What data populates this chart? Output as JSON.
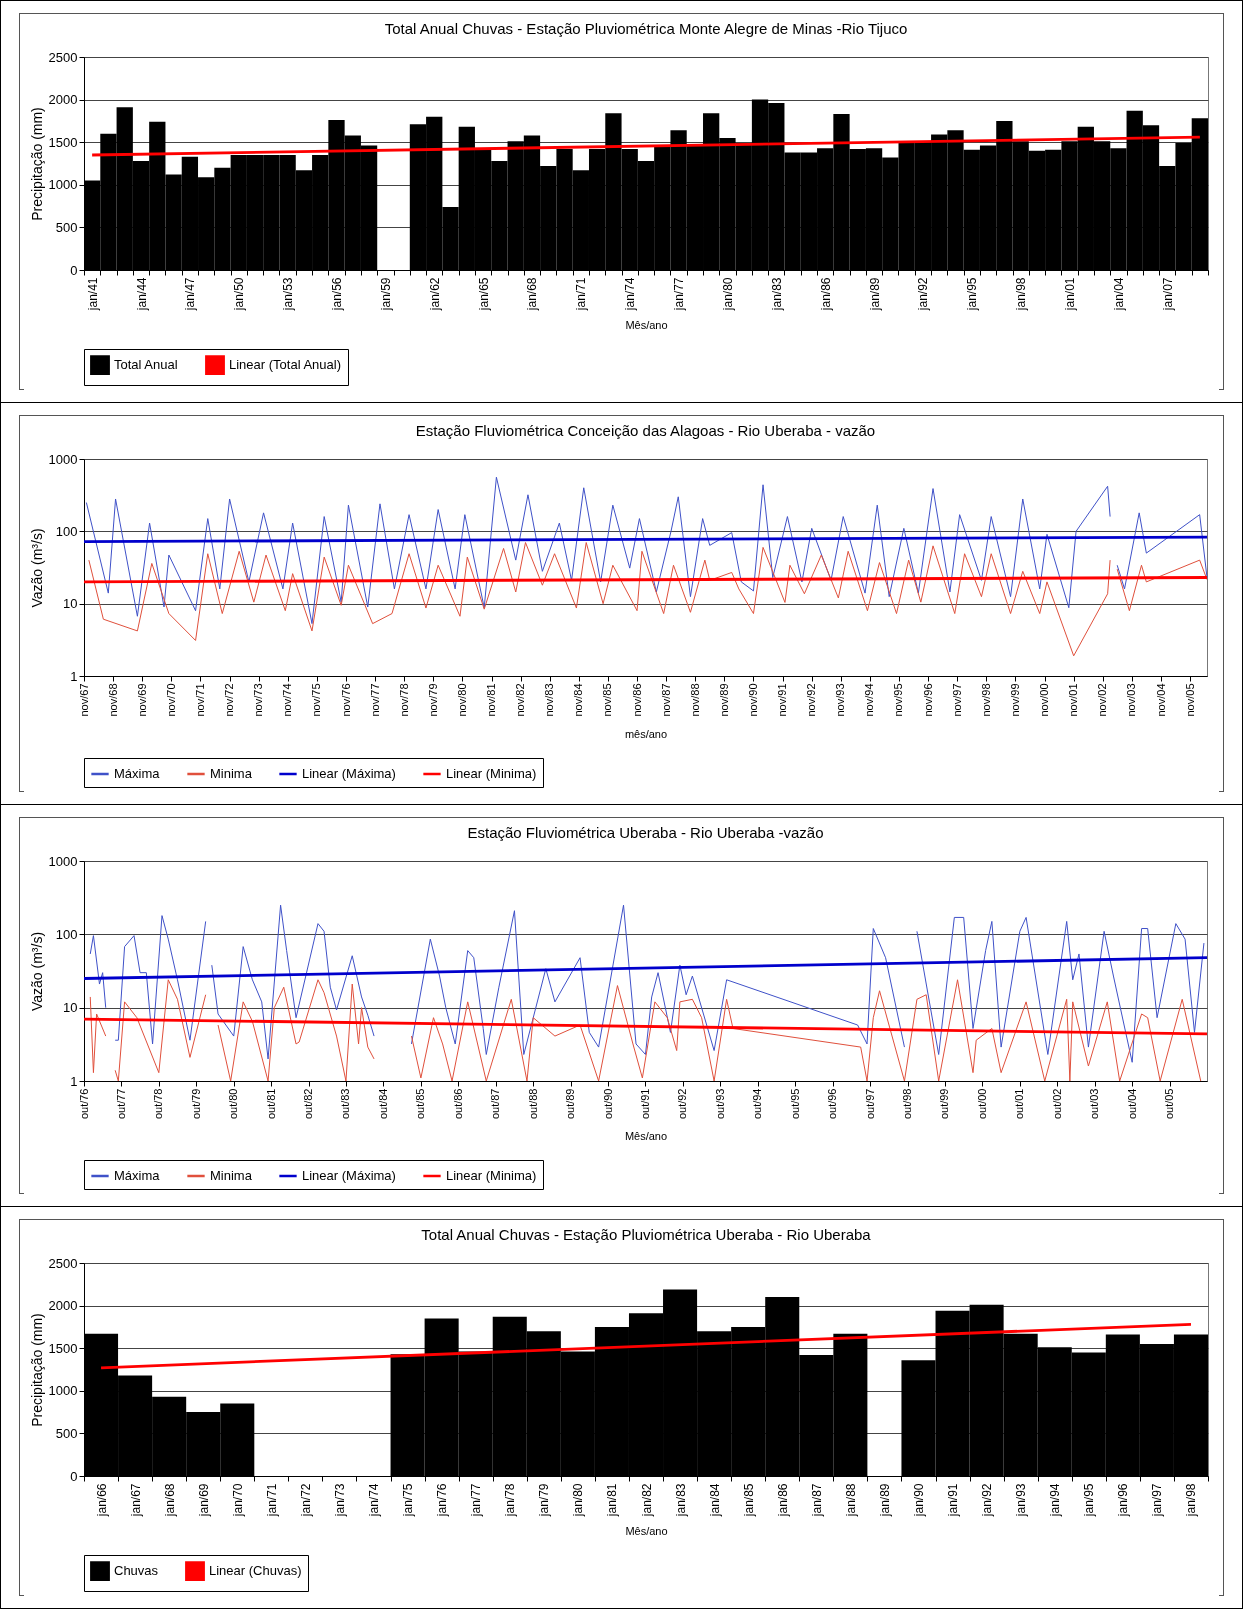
{
  "chart_data": [
    {
      "type": "bar",
      "title": "Total Anual Chuvas - Estação Pluviométrica Monte Alegre de Minas -Rio Tijuco",
      "xlabel": "Mês/ano",
      "ylabel": "Precipitação (mm)",
      "categories": [
        "jan/41",
        null,
        null,
        "jan/44",
        null,
        null,
        "jan/47",
        null,
        null,
        "jan/50",
        null,
        null,
        "jan/53",
        null,
        null,
        "jan/56",
        null,
        null,
        "jan/59",
        null,
        null,
        "jan/62",
        null,
        null,
        "jan/65",
        null,
        null,
        "jan/68",
        null,
        null,
        "jan/71",
        null,
        null,
        "jan/74",
        null,
        null,
        "jan/77",
        null,
        null,
        "jan/80",
        null,
        null,
        "jan/83",
        null,
        null,
        "jan/86",
        null,
        null,
        "jan/89",
        null,
        null,
        "jan/92",
        null,
        null,
        "jan/95",
        null,
        null,
        "jan/98",
        null,
        null,
        "jan/01",
        null,
        null,
        "jan/04",
        null,
        null,
        "jan/07",
        null,
        null
      ],
      "series": [
        {
          "name": "Total Anual",
          "type": "bar",
          "color": "#000000",
          "values": [
            1050,
            1600,
            1910,
            1280,
            1740,
            1120,
            1330,
            1090,
            1200,
            1350,
            1350,
            1350,
            1350,
            1170,
            1350,
            1760,
            1580,
            1460,
            null,
            null,
            1710,
            1800,
            740,
            1680,
            1420,
            1280,
            1510,
            1580,
            1220,
            1420,
            1170,
            1420,
            1840,
            1420,
            1280,
            1460,
            1640,
            1460,
            1840,
            1550,
            1490,
            2000,
            1960,
            1380,
            1380,
            1430,
            1830,
            1420,
            1430,
            1320,
            1510,
            1510,
            1590,
            1640,
            1410,
            1460,
            1750,
            1510,
            1400,
            1410,
            1510,
            1680,
            1510,
            1430,
            1870,
            1700,
            1220,
            1490,
            1780
          ]
        },
        {
          "name": "Linear (Total Anual)",
          "type": "line",
          "color": "#ff0000",
          "values": [
            1350,
            null,
            null,
            null,
            null,
            null,
            null,
            null,
            null,
            null,
            null,
            null,
            null,
            null,
            null,
            null,
            null,
            null,
            null,
            null,
            null,
            null,
            null,
            null,
            null,
            null,
            null,
            null,
            null,
            null,
            null,
            null,
            null,
            null,
            null,
            null,
            null,
            null,
            null,
            null,
            null,
            null,
            null,
            null,
            null,
            null,
            null,
            null,
            null,
            null,
            null,
            null,
            null,
            null,
            null,
            null,
            null,
            null,
            null,
            null,
            null,
            null,
            null,
            null,
            null,
            null,
            null,
            null,
            1560
          ]
        }
      ],
      "ylim": [
        0,
        2500
      ],
      "yticks": [
        0,
        500,
        1000,
        1500,
        2000,
        2500
      ],
      "grid": "y",
      "legend": "bottom"
    },
    {
      "type": "line",
      "title": "Estação Fluviométrica Conceição das Alagoas - Rio Uberaba - vazão",
      "xlabel": "mês/ano",
      "ylabel": "Vazão (m³/s)",
      "series": [
        {
          "name": "Máxima",
          "color": "#3f51c8",
          "x": [
            "1967-12",
            "1968-09",
            "1968-12",
            "1969-09",
            "1970-02",
            "1970-08",
            "1970-10",
            "1971-09",
            "1972-02",
            "1972-07",
            "1972-11",
            "1973-07",
            "1974-01",
            "1974-09",
            "1975-01",
            "1975-09",
            "1976-02",
            "1976-09",
            "1976-12",
            "1977-08",
            "1978-01",
            "1978-07",
            "1979-01",
            "1979-08",
            "1980-01",
            "1980-08",
            "1980-12",
            "1981-08",
            "1982-01",
            "1982-09",
            "1983-02",
            "1983-08",
            "1984-03",
            "1984-08",
            "1985-01",
            "1985-08",
            "1986-01",
            "1986-08",
            "1986-12",
            "1987-07",
            "1988-01",
            "1988-04",
            "1988-09",
            "1989-02",
            "1989-05",
            "1990-02",
            "1990-06",
            "1990-11",
            "1991-03",
            "1991-07",
            "1992-01",
            "1992-07",
            "1992-11",
            "1993-07",
            "1993-12",
            "1994-09",
            "1995-02",
            "1995-07",
            "1996-01",
            "1996-07",
            "1997-01",
            "1997-08",
            "1997-12",
            "1998-09",
            "1999-01",
            "1999-09",
            "2000-02",
            "2000-09",
            "2000-12",
            "2001-09",
            "2001-12",
            "2003-01",
            "2003-02",
            "2003-04",
            "2003-05",
            "2003-08",
            "2004-02",
            "2004-05",
            "2006-03",
            "2006-06"
          ],
          "values": [
            250,
            14,
            280,
            6.7,
            130,
            9,
            47,
            8,
            150,
            16,
            280,
            20,
            180,
            16,
            130,
            5.3,
            160,
            10.5,
            230,
            9,
            240,
            16,
            170,
            16,
            200,
            16,
            170,
            8.8,
            560,
            40,
            320,
            28,
            130,
            21,
            400,
            20,
            230,
            31,
            150,
            14.5,
            100,
            300,
            12.5,
            150,
            64,
            96,
            20,
            15,
            440,
            23,
            160,
            20,
            110,
            21,
            160,
            14,
            230,
            12.5,
            110,
            14,
            390,
            14.5,
            170,
            21,
            160,
            12.5,
            280,
            16,
            91,
            8.8,
            100,
            420,
            160,
            null,
            34,
            16,
            180,
            50,
            170,
            23
          ]
        },
        {
          "name": "Minima",
          "color": "#e0503c",
          "x": [
            "1968-01",
            "1968-07",
            "1969-09",
            "1970-03",
            "1970-10",
            "1971-09",
            "1972-02",
            "1972-08",
            "1973-03",
            "1973-09",
            "1974-02",
            "1974-10",
            "1975-01",
            "1975-09",
            "1976-02",
            "1976-09",
            "1976-12",
            "1977-10",
            "1978-06",
            "1979-01",
            "1979-08",
            "1980-01",
            "1980-10",
            "1981-01",
            "1981-08",
            "1982-04",
            "1982-09",
            "1983-01",
            "1983-08",
            "1984-01",
            "1984-10",
            "1985-02",
            "1985-09",
            "1986-01",
            "1986-11",
            "1987-01",
            "1987-10",
            "1988-02",
            "1988-09",
            "1989-03",
            "1989-05",
            "1990-02",
            "1990-05",
            "1990-11",
            "1991-03",
            "1991-12",
            "1992-02",
            "1992-08",
            "1993-03",
            "1993-10",
            "1994-02",
            "1994-10",
            "1995-03",
            "1995-10",
            "1996-03",
            "1996-08",
            "1997-01",
            "1997-10",
            "1998-02",
            "1998-09",
            "1999-01",
            "1999-09",
            "2000-02",
            "2000-09",
            "2000-12",
            "2001-11",
            "2003-01",
            "2003-02",
            "2003-04",
            "2003-05",
            "2003-10",
            "2004-03",
            "2004-05",
            "2006-03",
            "2006-06"
          ],
          "values": [
            40,
            6.1,
            4.2,
            36,
            7.3,
            3.1,
            49,
            7.3,
            53,
            10.5,
            47,
            8,
            26,
            4.2,
            44,
            9.5,
            34,
            5.3,
            7.3,
            49,
            8.7,
            34,
            6.7,
            44,
            8.4,
            58,
            14.5,
            70,
            18,
            49,
            8.7,
            70,
            10,
            34,
            8,
            53,
            7.3,
            34,
            7.6,
            40,
            21,
            27,
            16,
            7.3,
            60,
            10.4,
            34,
            13.7,
            47,
            12,
            53,
            8,
            37,
            7.3,
            40,
            10.5,
            63,
            7.3,
            49,
            12.5,
            49,
            7.3,
            28,
            7.3,
            20,
            1.9,
            13.7,
            40,
            null,
            30,
            8,
            34,
            20,
            40,
            21.5
          ]
        },
        {
          "name": "Linear (Máxima)",
          "color": "#0000cc",
          "x": [
            "1967-11",
            "2006-06"
          ],
          "values": [
            72,
            83
          ]
        },
        {
          "name": "Linear (Minima)",
          "color": "#ff0000",
          "x": [
            "1967-11",
            "2006-06"
          ],
          "values": [
            20,
            23
          ]
        }
      ],
      "xlim": [
        "1967-11",
        "2006-06"
      ],
      "xticks": [
        {
          "value": "1967-11",
          "label": "nov/67"
        },
        {
          "value": "1968-11",
          "label": "nov/68"
        },
        {
          "value": "1969-11",
          "label": "nov/69"
        },
        {
          "value": "1970-11",
          "label": "nov/70"
        },
        {
          "value": "1971-11",
          "label": "nov/71"
        },
        {
          "value": "1972-11",
          "label": "nov/72"
        },
        {
          "value": "1973-11",
          "label": "nov/73"
        },
        {
          "value": "1974-11",
          "label": "nov/74"
        },
        {
          "value": "1975-11",
          "label": "nov/75"
        },
        {
          "value": "1976-11",
          "label": "nov/76"
        },
        {
          "value": "1977-11",
          "label": "nov/77"
        },
        {
          "value": "1978-11",
          "label": "nov/78"
        },
        {
          "value": "1979-11",
          "label": "nov/79"
        },
        {
          "value": "1980-11",
          "label": "nov/80"
        },
        {
          "value": "1981-11",
          "label": "nov/81"
        },
        {
          "value": "1982-11",
          "label": "nov/82"
        },
        {
          "value": "1983-11",
          "label": "nov/83"
        },
        {
          "value": "1984-11",
          "label": "nov/84"
        },
        {
          "value": "1985-11",
          "label": "nov/85"
        },
        {
          "value": "1986-11",
          "label": "nov/86"
        },
        {
          "value": "1987-11",
          "label": "nov/87"
        },
        {
          "value": "1988-11",
          "label": "nov/88"
        },
        {
          "value": "1989-11",
          "label": "nov/89"
        },
        {
          "value": "1990-11",
          "label": "nov/90"
        },
        {
          "value": "1991-11",
          "label": "nov/91"
        },
        {
          "value": "1992-11",
          "label": "nov/92"
        },
        {
          "value": "1993-11",
          "label": "nov/93"
        },
        {
          "value": "1994-11",
          "label": "nov/94"
        },
        {
          "value": "1995-11",
          "label": "nov/95"
        },
        {
          "value": "1996-11",
          "label": "nov/96"
        },
        {
          "value": "1997-11",
          "label": "nov/97"
        },
        {
          "value": "1998-11",
          "label": "nov/98"
        },
        {
          "value": "1999-11",
          "label": "nov/99"
        },
        {
          "value": "2000-11",
          "label": "nov/00"
        },
        {
          "value": "2001-11",
          "label": "nov/01"
        },
        {
          "value": "2002-11",
          "label": "nov/02"
        },
        {
          "value": "2003-11",
          "label": "nov/03"
        },
        {
          "value": "2004-11",
          "label": "nov/04"
        },
        {
          "value": "2005-11",
          "label": "nov/05"
        }
      ],
      "ylim": [
        1,
        1000
      ],
      "yticks": [
        1,
        10,
        100,
        1000
      ],
      "log": true,
      "grid": "y",
      "legend": "bottom"
    },
    {
      "type": "line",
      "title": "Estação Fluviométrica Uberaba - Rio Uberaba -vazão",
      "xlabel": "Mês/ano",
      "ylabel": "Vazão (m³/s)",
      "series": [
        {
          "name": "Máxima",
          "color": "#3f51c8",
          "x": [
            "1976-12",
            "1977-01",
            "1977-03",
            "1977-04",
            "1977-05",
            "1977-07",
            "1977-08",
            "1977-09",
            "1977-11",
            "1978-02",
            "1978-04",
            "1978-06",
            "1978-08",
            "1978-11",
            "1979-01",
            "1979-04",
            "1979-08",
            "1980-01",
            "1980-02",
            "1980-03",
            "1980-05",
            "1980-10",
            "1981-01",
            "1981-04",
            "1981-07",
            "1981-09",
            "1982-01",
            "1982-03",
            "1982-06",
            "1983-01",
            "1983-03",
            "1983-05",
            "1983-07",
            "1983-12",
            "1984-03",
            "1984-05",
            "1984-07",
            "1985-01",
            "1985-07",
            "1986-01",
            "1986-04",
            "1986-06",
            "1986-09",
            "1987-01",
            "1987-03",
            "1987-06",
            "1987-07",
            "1987-11",
            "1988-04",
            "1988-07",
            "1989-02",
            "1989-05",
            "1990-01",
            "1990-04",
            "1990-07",
            "1991-03",
            "1991-07",
            "1991-10",
            "1991-12",
            "1992-02",
            "1992-06",
            "1992-09",
            "1992-11",
            "1993-01",
            "1993-08",
            "1993-12",
            "1997-06",
            "1997-09",
            "1997-11",
            "1998-03",
            "1998-09",
            "1998-11",
            "1999-01",
            "1999-08",
            "2000-01",
            "2000-04",
            "2000-07",
            "2000-11",
            "2001-01",
            "2001-04",
            "2001-10",
            "2001-12",
            "2002-07",
            "2003-01",
            "2003-03",
            "2003-05",
            "2003-08",
            "2004-01",
            "2004-04",
            "2004-10",
            "2005-01",
            "2005-03",
            "2005-06",
            "2005-12",
            "2006-03",
            "2006-06",
            "2006-09"
          ],
          "values": [
            54,
            96,
            21,
            30,
            10,
            null,
            3.6,
            3.6,
            68,
            96,
            30,
            30,
            3.2,
            180,
            86,
            24,
            3.6,
            150,
            null,
            38,
            8.2,
            4.1,
            68,
            24,
            12,
            2,
            250,
            60,
            7.3,
            140,
            110,
            19,
            9.3,
            51,
            14,
            7.9,
            4.1,
            null,
            3.2,
            86,
            27,
            10,
            3.2,
            60,
            48,
            5.2,
            2.3,
            19,
            210,
            2.3,
            34,
            12,
            48,
            4.6,
            2.9,
            250,
            3.2,
            2.3,
            14,
            30,
            4.6,
            38,
            15,
            27,
            2.6,
            24,
            5.8,
            3.2,
            120,
            48,
            2.9,
            null,
            110,
            2.3,
            170,
            170,
            5.2,
            60,
            150,
            2.9,
            110,
            170,
            2.3,
            150,
            24,
            54,
            2.9,
            110,
            27,
            1.8,
            120,
            120,
            7.3,
            140,
            86,
            4.6,
            76
          ]
        },
        {
          "name": "Minima",
          "color": "#e0503c",
          "x": [
            "1976-12",
            "1977-01",
            "1977-02",
            "1977-05",
            "1977-07",
            "1977-08",
            "1977-09",
            "1977-11",
            "1978-03",
            "1978-10",
            "1979-01",
            "1979-04",
            "1979-08",
            "1980-01",
            "1980-02",
            "1980-05",
            "1980-09",
            "1981-01",
            "1981-04",
            "1981-09",
            "1981-11",
            "1982-02",
            "1982-06",
            "1982-07",
            "1983-01",
            "1983-03",
            "1983-07",
            "1983-10",
            "1983-12",
            "1984-02",
            "1984-03",
            "1984-05",
            "1984-07",
            "1985-01",
            "1985-07",
            "1985-10",
            "1986-02",
            "1986-05",
            "1986-08",
            "1987-01",
            "1987-07",
            "1988-03",
            "1988-08",
            "1988-10",
            "1989-05",
            "1990-01",
            "1990-07",
            "1991-01",
            "1991-06",
            "1991-09",
            "1992-01",
            "1992-05",
            "1992-08",
            "1992-09",
            "1993-01",
            "1993-04",
            "1993-08",
            "1993-12",
            "1994-02",
            "1997-07",
            "1997-09",
            "1997-11",
            "1998-01",
            "1998-09",
            "1999-01",
            "1999-04",
            "1999-08",
            "2000-02",
            "2000-07",
            "2000-08",
            "2001-01",
            "2001-04",
            "2001-12",
            "2002-06",
            "2003-01",
            "2003-02",
            "2003-03",
            "2003-08",
            "2004-02",
            "2004-06",
            "2005-01",
            "2005-03",
            "2005-07",
            "2006-02",
            "2006-08"
          ],
          "values": [
            14,
            1.3,
            8.2,
            4.1,
            null,
            1.4,
            1,
            12,
            7.3,
            1.3,
            24,
            13,
            2.1,
            15,
            null,
            5.8,
            1,
            12,
            6.5,
            1,
            10,
            19,
            3.2,
            3.4,
            24,
            16,
            4.1,
            1,
            21,
            3.2,
            10,
            2.9,
            2,
            null,
            4.1,
            1.1,
            7.3,
            3.2,
            1,
            12,
            1,
            13,
            1,
            7.3,
            4.1,
            5.8,
            1,
            20,
            3.2,
            1.1,
            12,
            7.3,
            2.6,
            12,
            13,
            7.3,
            1,
            13,
            5.2,
            2.9,
            1,
            7.3,
            17,
            1,
            13,
            15,
            1,
            24,
            1.3,
            3.6,
            5.2,
            1.3,
            12,
            1,
            13,
            1,
            12,
            1.6,
            12,
            1,
            8.2,
            7.3,
            1,
            13,
            1
          ]
        },
        {
          "name": "Linear (Máxima)",
          "color": "#0000cc",
          "x": [
            "1976-10",
            "2006-10"
          ],
          "values": [
            25,
            48
          ]
        },
        {
          "name": "Linear (Minima)",
          "color": "#ff0000",
          "x": [
            "1976-10",
            "2006-10"
          ],
          "values": [
            7,
            4.4
          ]
        }
      ],
      "xlim": [
        "1976-10",
        "2006-10"
      ],
      "xticks": [
        {
          "value": "1976-10",
          "label": "out/76"
        },
        {
          "value": "1977-10",
          "label": "out/77"
        },
        {
          "value": "1978-10",
          "label": "out/78"
        },
        {
          "value": "1979-10",
          "label": "out/79"
        },
        {
          "value": "1980-10",
          "label": "out/80"
        },
        {
          "value": "1981-10",
          "label": "out/81"
        },
        {
          "value": "1982-10",
          "label": "out/82"
        },
        {
          "value": "1983-10",
          "label": "out/83"
        },
        {
          "value": "1984-10",
          "label": "out/84"
        },
        {
          "value": "1985-10",
          "label": "out/85"
        },
        {
          "value": "1986-10",
          "label": "out/86"
        },
        {
          "value": "1987-10",
          "label": "out/87"
        },
        {
          "value": "1988-10",
          "label": "out/88"
        },
        {
          "value": "1989-10",
          "label": "out/89"
        },
        {
          "value": "1990-10",
          "label": "out/90"
        },
        {
          "value": "1991-10",
          "label": "out/91"
        },
        {
          "value": "1992-10",
          "label": "out/92"
        },
        {
          "value": "1993-10",
          "label": "out/93"
        },
        {
          "value": "1994-10",
          "label": "out/94"
        },
        {
          "value": "1995-10",
          "label": "out/95"
        },
        {
          "value": "1996-10",
          "label": "out/96"
        },
        {
          "value": "1997-10",
          "label": "out/97"
        },
        {
          "value": "1998-10",
          "label": "out/98"
        },
        {
          "value": "1999-10",
          "label": "out/99"
        },
        {
          "value": "2000-10",
          "label": "out/00"
        },
        {
          "value": "2001-10",
          "label": "out/01"
        },
        {
          "value": "2002-10",
          "label": "out/02"
        },
        {
          "value": "2003-10",
          "label": "out/03"
        },
        {
          "value": "2004-10",
          "label": "out/04"
        },
        {
          "value": "2005-10",
          "label": "out/05"
        }
      ],
      "ylim": [
        1,
        1000
      ],
      "yticks": [
        1,
        10,
        100,
        1000
      ],
      "log": true,
      "grid": "y",
      "legend": "bottom"
    },
    {
      "type": "bar",
      "title": "Total Anual Chuvas - Estação Pluviométrica Uberaba - Rio Uberaba",
      "xlabel": "Mês/ano",
      "ylabel": "Precipitação (mm)",
      "categories": [
        "jan/66",
        "jan/67",
        "jan/68",
        "jan/69",
        "jan/70",
        "jan/71",
        "jan/72",
        "jan/73",
        "jan/74",
        "jan/75",
        "jan/76",
        "jan/77",
        "jan/78",
        "jan/79",
        "jan/80",
        "jan/81",
        "jan/82",
        "jan/83",
        "jan/84",
        "jan/85",
        "jan/86",
        "jan/87",
        "jan/88",
        "jan/89",
        "jan/90",
        "jan/91",
        "jan/92",
        "jan/93",
        "jan/94",
        "jan/95",
        "jan/96",
        "jan/97",
        "jan/98"
      ],
      "series": [
        {
          "name": "Chuvas",
          "type": "bar",
          "color": "#000000",
          "values": [
            1670,
            1180,
            930,
            750,
            850,
            null,
            null,
            null,
            null,
            1430,
            1850,
            1460,
            1870,
            1700,
            1460,
            1750,
            1910,
            2190,
            1700,
            1750,
            2100,
            1420,
            1670,
            null,
            1360,
            1940,
            2010,
            1670,
            1510,
            1450,
            1660,
            1550,
            1660
          ]
        },
        {
          "name": "Linear (Chuvas)",
          "type": "line",
          "color": "#ff0000",
          "values": [
            1270,
            null,
            null,
            null,
            null,
            null,
            null,
            null,
            null,
            null,
            null,
            null,
            null,
            null,
            null,
            null,
            null,
            null,
            null,
            null,
            null,
            null,
            null,
            null,
            null,
            null,
            null,
            null,
            null,
            null,
            null,
            null,
            1780
          ]
        }
      ],
      "ylim": [
        0,
        2500
      ],
      "yticks": [
        0,
        500,
        1000,
        1500,
        2000,
        2500
      ],
      "grid": "y",
      "legend": "bottom"
    }
  ]
}
